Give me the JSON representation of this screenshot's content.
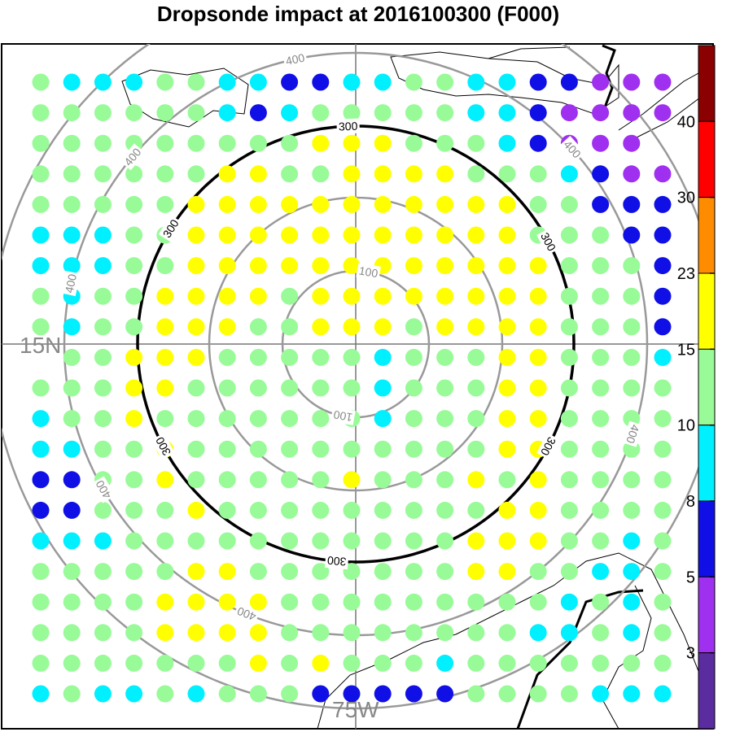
{
  "title": "Dropsonde impact at 2016100300 (F000)",
  "chart_data": {
    "type": "map-scatter",
    "center_labels": {
      "latitude": "15N",
      "longitude": "75W"
    },
    "range_rings": [
      {
        "label": "100",
        "emphasis": false
      },
      {
        "label": "200",
        "emphasis": false,
        "labeled": false
      },
      {
        "label": "300",
        "emphasis": true
      },
      {
        "label": "400",
        "emphasis": false
      },
      {
        "label": "500",
        "emphasis": false,
        "labeled": false
      }
    ],
    "colorbar": {
      "tick_labels": [
        "3",
        "5",
        "8",
        "10",
        "15",
        "23",
        "30",
        "40"
      ],
      "colors": [
        "#5b2ca0",
        "#a030f0",
        "#1010e6",
        "#00f0ff",
        "#98fb98",
        "#ffff00",
        "#ff8c00",
        "#ff0000",
        "#8b0000"
      ]
    },
    "grid": {
      "rows": 21,
      "cols": 21,
      "legend": "V=purple,B=blue,C=cyan,G=green,Y=yellow,_=none",
      "values": [
        "GCCCGGCCBBCCGGCCBBVVV",
        "GGGGGGCBCGGGGGCCBVVVV",
        "GGGGGGGGGYYYGGGCBVVV_",
        "GGGGGGYYGGYYYYGGGCBVV",
        "GGGGGYYYYYYYYYYYGGBBB",
        "CCCGGYYYYYYYYYYYGGGBB",
        "CCCGGYYYYYYYYYYYYGGGB",
        "GCGGYYYYGYYYYYYYYGGGB",
        "GCGGYYYGGYYYGYYYYGGGB",
        "_GGYYYGGGGGCGGGYYGGGC",
        "GGGYYGGGGGGCGGGYYGGGG",
        "CGGYGGGGGGGCGGGYYGGGG",
        "CCGGYGGGGGGGGGGYYGGGG",
        "BBGGYGGGGGYGGGYGYGGGG",
        "BBGGGYGGGGGGGGGYYGGGG",
        "CCCGGGGGGGGGGGYYYGGCG",
        "GGGGGYYGGGGGGGYYGGCCG",
        "GGGGYYYYGGGGGGGGGCGCG",
        "GGGGYYYYGGGGGGGGCCGCG",
        "GGGGGGGYGYGGGCGGGGGGG",
        "CGCCGCGGGBBBBBGGGGCCC"
      ]
    }
  }
}
